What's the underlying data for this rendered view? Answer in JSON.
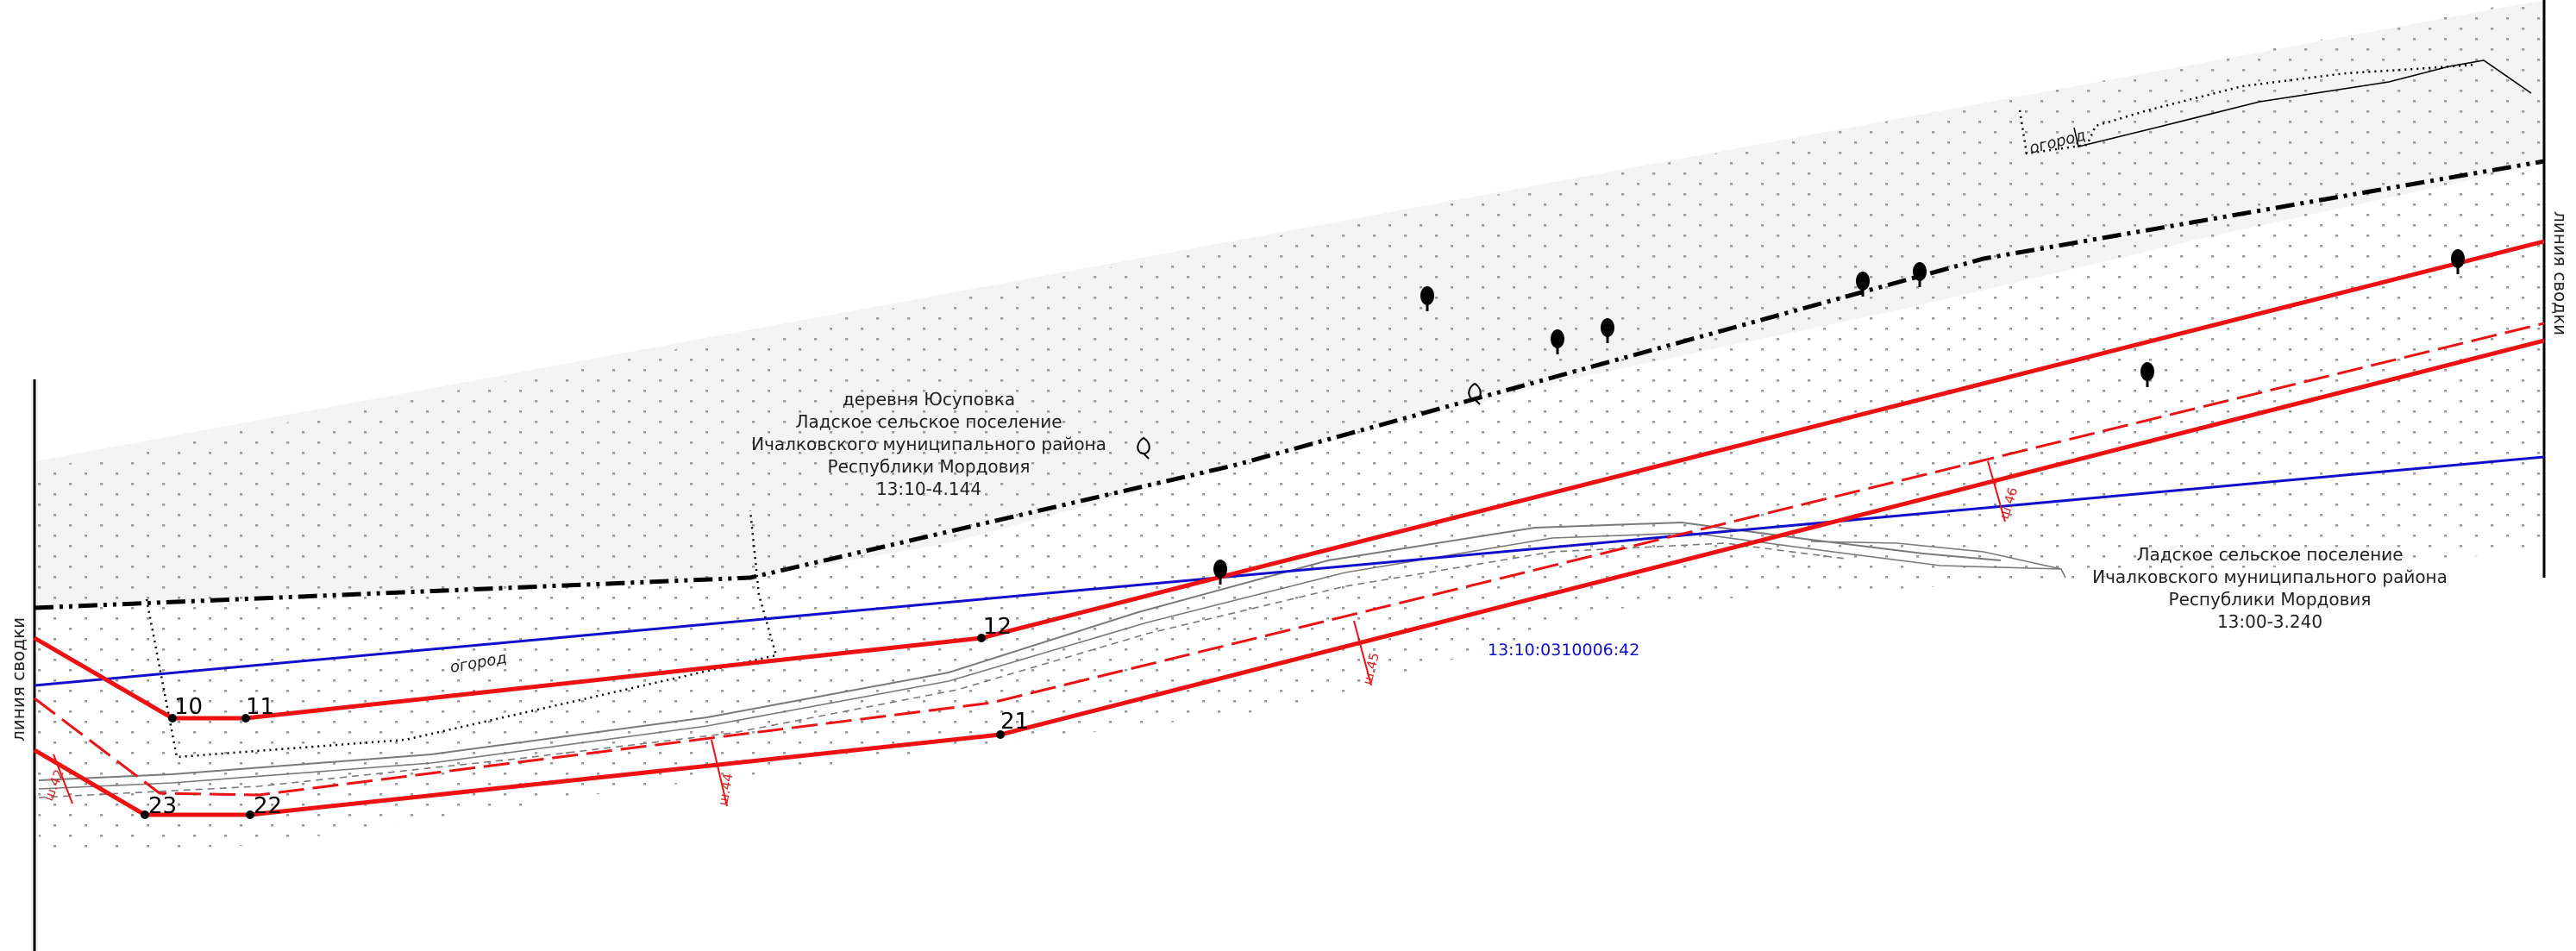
{
  "map": {
    "colors": {
      "boundary_red": "#ee1111",
      "parcel_blue": "#1010cc",
      "settlement_dashdot": "#000000",
      "settlement_fill": "#f4f4f4",
      "road": "#7a7a7a",
      "dots": "#9a9a9a"
    },
    "sheet_edge_labels": {
      "left": "линия сводки",
      "right": "линия сводки"
    },
    "settlement_label": {
      "lines": [
        "деревня Юсуповка",
        "Ладское сельское поселение",
        "Ичалковского муниципального района",
        "Республики Мордовия",
        "13:10-4.144"
      ]
    },
    "district_label": {
      "lines": [
        "Ладское сельское поселение",
        "Ичалковского муниципального района",
        "Республики Мордовия",
        "13:00-3.240"
      ]
    },
    "cadastral_label": "13:10:0310006:42",
    "garden_labels": [
      "огород",
      "огород"
    ],
    "points": [
      "10",
      "11",
      "12",
      "21",
      "22",
      "23"
    ],
    "red_dim_labels": [
      "ш.42",
      "ш.44",
      "ш.45",
      "ш.46"
    ],
    "tree_icon": "deciduous-tree-icon",
    "shrub_icon": "shrub-outline-icon"
  }
}
